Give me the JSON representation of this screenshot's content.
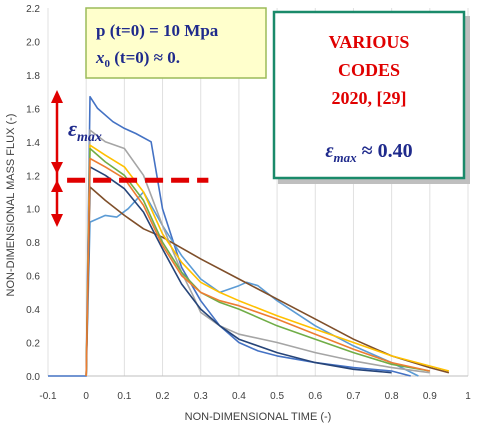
{
  "chart_data": {
    "type": "line",
    "xlabel": "NON-DIMENSIONAL TIME (-)",
    "ylabel": "NON-DIMENSIONAL MASS FLUX (-)",
    "xlim": [
      -0.1,
      1.0
    ],
    "ylim": [
      0.0,
      2.2
    ],
    "xticks": [
      "-0.1",
      "0",
      "0.1",
      "0.2",
      "0.3",
      "0.4",
      "0.5",
      "0.6",
      "0.7",
      "0.8",
      "0.9",
      "1"
    ],
    "yticks": [
      "0.0",
      "0.2",
      "0.4",
      "0.6",
      "0.8",
      "1.0",
      "1.2",
      "1.4",
      "1.6",
      "1.8",
      "2.0",
      "2.2"
    ],
    "grid": "vertical",
    "series": [
      {
        "color": "#4472c4",
        "x": [
          -0.1,
          0.0,
          0.01,
          0.03,
          0.07,
          0.1,
          0.13,
          0.17,
          0.2,
          0.25,
          0.3,
          0.35,
          0.4,
          0.45,
          0.5,
          0.6,
          0.7,
          0.8,
          0.85
        ],
        "y": [
          0,
          0,
          1.67,
          1.6,
          1.52,
          1.48,
          1.45,
          1.4,
          1.0,
          0.65,
          0.45,
          0.3,
          0.2,
          0.15,
          0.12,
          0.08,
          0.05,
          0.03,
          0.0
        ]
      },
      {
        "color": "#5b9bd5",
        "x": [
          0.0,
          0.01,
          0.05,
          0.08,
          0.11,
          0.15,
          0.2,
          0.25,
          0.3,
          0.35,
          0.4,
          0.42,
          0.45,
          0.5,
          0.6,
          0.7,
          0.8,
          0.87
        ],
        "y": [
          0,
          0.92,
          0.96,
          0.95,
          1.0,
          1.1,
          0.9,
          0.72,
          0.58,
          0.5,
          0.54,
          0.56,
          0.54,
          0.45,
          0.3,
          0.18,
          0.08,
          0.0
        ]
      },
      {
        "color": "#7f4f2a",
        "x": [
          0.0,
          0.01,
          0.05,
          0.1,
          0.15,
          0.2,
          0.3,
          0.4,
          0.5,
          0.6,
          0.7,
          0.8,
          0.9,
          0.95
        ],
        "y": [
          0,
          1.13,
          1.05,
          0.96,
          0.88,
          0.83,
          0.7,
          0.58,
          0.46,
          0.34,
          0.22,
          0.12,
          0.05,
          0.02
        ]
      },
      {
        "color": "#a5a5a5",
        "x": [
          0.0,
          0.01,
          0.05,
          0.1,
          0.15,
          0.2,
          0.25,
          0.28,
          0.3,
          0.35,
          0.4,
          0.5,
          0.6,
          0.7,
          0.8,
          0.9
        ],
        "y": [
          0,
          1.47,
          1.4,
          1.36,
          1.2,
          0.9,
          0.62,
          0.48,
          0.38,
          0.3,
          0.25,
          0.2,
          0.14,
          0.09,
          0.05,
          0.02
        ]
      },
      {
        "color": "#ffc000",
        "x": [
          0.0,
          0.01,
          0.05,
          0.1,
          0.15,
          0.2,
          0.25,
          0.3,
          0.35,
          0.4,
          0.5,
          0.6,
          0.7,
          0.8,
          0.9,
          0.95
        ],
        "y": [
          0,
          1.38,
          1.32,
          1.25,
          1.1,
          0.85,
          0.68,
          0.56,
          0.5,
          0.45,
          0.36,
          0.28,
          0.2,
          0.12,
          0.06,
          0.03
        ]
      },
      {
        "color": "#70ad47",
        "x": [
          0.0,
          0.01,
          0.05,
          0.1,
          0.15,
          0.2,
          0.25,
          0.3,
          0.35,
          0.4,
          0.5,
          0.6,
          0.7,
          0.8,
          0.9
        ],
        "y": [
          0,
          1.36,
          1.28,
          1.2,
          1.05,
          0.8,
          0.62,
          0.5,
          0.44,
          0.4,
          0.3,
          0.22,
          0.14,
          0.07,
          0.03
        ]
      },
      {
        "color": "#264478",
        "x": [
          0.0,
          0.01,
          0.05,
          0.1,
          0.15,
          0.2,
          0.25,
          0.3,
          0.35,
          0.4,
          0.5,
          0.6,
          0.7,
          0.8
        ],
        "y": [
          0,
          1.25,
          1.2,
          1.12,
          0.98,
          0.76,
          0.55,
          0.4,
          0.3,
          0.22,
          0.14,
          0.08,
          0.04,
          0.02
        ]
      },
      {
        "color": "#ed7d31",
        "x": [
          0.0,
          0.01,
          0.05,
          0.1,
          0.15,
          0.2,
          0.25,
          0.3,
          0.35,
          0.4,
          0.5,
          0.6,
          0.7,
          0.8,
          0.9
        ],
        "y": [
          0,
          1.3,
          1.25,
          1.18,
          1.02,
          0.78,
          0.6,
          0.5,
          0.45,
          0.42,
          0.34,
          0.25,
          0.16,
          0.08,
          0.03
        ]
      }
    ],
    "reference_line": {
      "y": 1.17,
      "color": "#e00000",
      "x_from": -0.05,
      "x_to": 0.32
    },
    "annotations": {
      "conditions_line1": "p (t=0)  = 10 Mpa",
      "conditions_line2_var": "x",
      "conditions_line2_sub": "0",
      "conditions_line2_rest": " (t=0) ≈ 0.",
      "codes_line1": "VARIOUS",
      "codes_line2": "CODES",
      "codes_line3": "2020, [29]",
      "eps_symbol": "ε",
      "eps_sub": "max",
      "eps_value": " ≈ 0.40",
      "arrow_label_symbol": "ε",
      "arrow_label_sub": "max"
    }
  }
}
